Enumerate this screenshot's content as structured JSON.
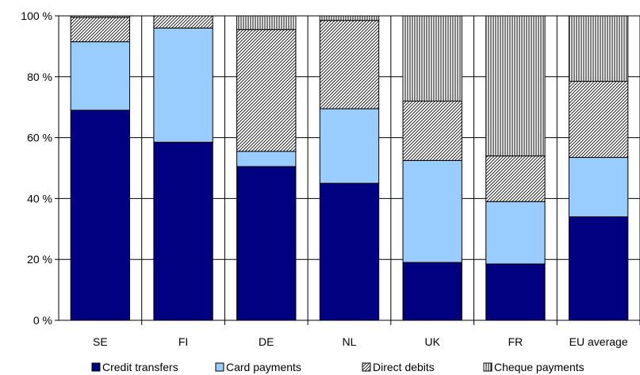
{
  "chart_data": {
    "type": "bar",
    "stacked": true,
    "percent_axis": true,
    "categories": [
      "SE",
      "FI",
      "DE",
      "NL",
      "UK",
      "FR",
      "EU average"
    ],
    "series": [
      {
        "name": "Credit transfers",
        "values": [
          69,
          58.5,
          50.5,
          45,
          19,
          18.5,
          34
        ],
        "color": "#000080",
        "pattern": "solid"
      },
      {
        "name": "Card payments",
        "values": [
          22.5,
          37.5,
          5,
          24.5,
          33.5,
          20.5,
          19.5
        ],
        "color": "#99ccff",
        "pattern": "solid"
      },
      {
        "name": "Direct debits",
        "values": [
          8,
          4,
          40,
          29,
          19.5,
          15,
          25
        ],
        "color": "#ffffff",
        "pattern": "diagonal-hatch"
      },
      {
        "name": "Cheque payments",
        "values": [
          0.5,
          0,
          4.5,
          1.5,
          28,
          46,
          21.5
        ],
        "color": "#ffffff",
        "pattern": "vertical-hatch"
      }
    ],
    "yticks": [
      "0 %",
      "20 %",
      "40 %",
      "60 %",
      "80 %",
      "100 %"
    ],
    "ylim": [
      0,
      100
    ],
    "grid": true,
    "legend_position": "bottom",
    "title": "",
    "xlabel": "",
    "ylabel": ""
  }
}
